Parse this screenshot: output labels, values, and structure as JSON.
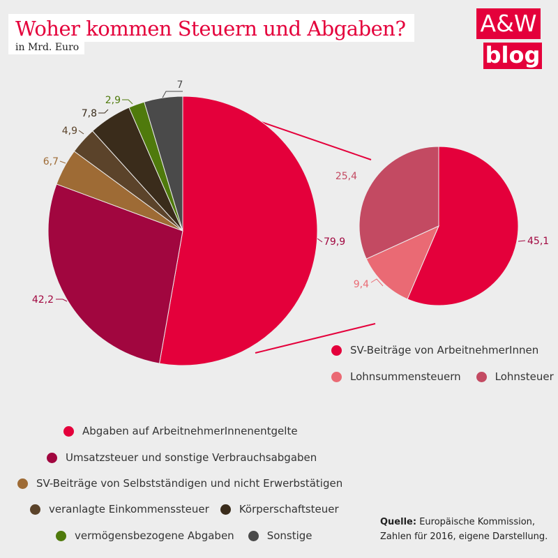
{
  "header": {
    "title": "Woher kommen Steuern und Abgaben?",
    "subtitle": "in Mrd. Euro"
  },
  "logo": {
    "line1": "A&W",
    "line2": "blog"
  },
  "colors": {
    "abgaben": "#e4003b",
    "umsatz": "#a1063f",
    "sv_selbst": "#9e6b35",
    "einkommen": "#5b432a",
    "koerperschaft": "#3a2c1b",
    "vermoegen": "#4f7a0c",
    "sonstige": "#4a4a4a",
    "sv_arbeitnehmer": "#e4003b",
    "lohnsummen": "#ea6a74",
    "lohnsteuer": "#c34a62"
  },
  "chart_data": [
    {
      "type": "pie",
      "slices": [
        {
          "name": "Abgaben auf ArbeitnehmerInnenentgelte",
          "value": 79.9,
          "label": "79,9",
          "color_key": "abgaben"
        },
        {
          "name": "Umsatzsteuer und sonstige Verbrauchsabgaben",
          "value": 42.2,
          "label": "42,2",
          "color_key": "umsatz"
        },
        {
          "name": "SV-Beiträge von Selbstständigen und nicht Erwerbstätigen",
          "value": 6.7,
          "label": "6,7",
          "color_key": "sv_selbst"
        },
        {
          "name": "veranlagte Einkommenssteuer",
          "value": 4.9,
          "label": "4,9",
          "color_key": "einkommen"
        },
        {
          "name": "Körperschaftsteuer",
          "value": 7.8,
          "label": "7,8",
          "color_key": "koerperschaft"
        },
        {
          "name": "vermögensbezogene Abgaben",
          "value": 2.9,
          "label": "2,9",
          "color_key": "vermoegen"
        },
        {
          "name": "Sonstige",
          "value": 7,
          "label": "7",
          "color_key": "sonstige"
        }
      ]
    },
    {
      "type": "pie",
      "slices": [
        {
          "name": "SV-Beiträge von ArbeitnehmerInnen",
          "value": 45.1,
          "label": "45,1",
          "color_key": "sv_arbeitnehmer"
        },
        {
          "name": "Lohnsummensteuern",
          "value": 9.4,
          "label": "9,4",
          "color_key": "lohnsummen"
        },
        {
          "name": "Lohnsteuer",
          "value": 25.4,
          "label": "25,4",
          "color_key": "lohnsteuer"
        }
      ]
    }
  ],
  "legend_main": [
    "Abgaben auf ArbeitnehmerInnenentgelte",
    "Umsatzsteuer und sonstige Verbrauchsabgaben",
    "SV-Beiträge von Selbstständigen und nicht Erwerbstätigen",
    "veranlagte Einkommenssteuer",
    "Körperschaftsteuer",
    "vermögensbezogene Abgaben",
    "Sonstige"
  ],
  "legend_detail": [
    "SV-Beiträge von ArbeitnehmerInnen",
    "Lohnsummensteuern",
    "Lohnsteuer"
  ],
  "source": {
    "label": "Quelle:",
    "text1": " Europäische Kommission,",
    "text2": "Zahlen für 2016, eigene Darstellung."
  }
}
